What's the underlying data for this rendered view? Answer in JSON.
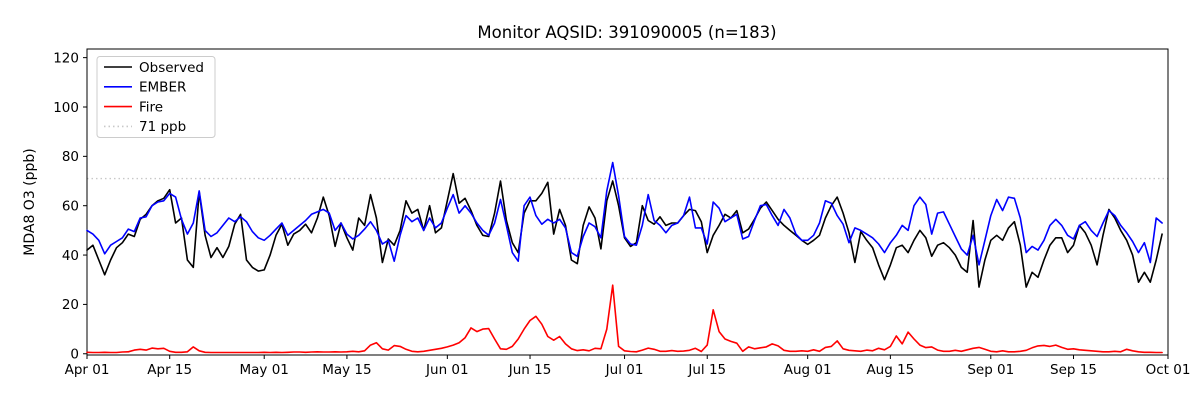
{
  "figure": {
    "title": "Monitor AQSID: 391090005 (n=183)",
    "background": "#ffffff",
    "frame_color": "#000000"
  },
  "chart_data": {
    "type": "line",
    "title": "Monitor AQSID: 391090005 (n=183)",
    "ylabel": "MDA8 O3 (ppb)",
    "xlabel": "",
    "n_points": 183,
    "x_unit": "day",
    "x_start": "Apr 01",
    "x_end": "Sep 30",
    "ylim": [
      -0.5,
      123.5
    ],
    "y_ticks": [
      0,
      20,
      40,
      60,
      80,
      100,
      120
    ],
    "x_ticks": [
      {
        "label": "Apr 01",
        "day": 0
      },
      {
        "label": "Apr 15",
        "day": 14
      },
      {
        "label": "May 01",
        "day": 30
      },
      {
        "label": "May 15",
        "day": 44
      },
      {
        "label": "Jun 01",
        "day": 61
      },
      {
        "label": "Jun 15",
        "day": 75
      },
      {
        "label": "Jul 01",
        "day": 91
      },
      {
        "label": "Jul 15",
        "day": 105
      },
      {
        "label": "Aug 01",
        "day": 122
      },
      {
        "label": "Aug 15",
        "day": 136
      },
      {
        "label": "Sep 01",
        "day": 153
      },
      {
        "label": "Sep 15",
        "day": 167
      },
      {
        "label": "Oct 01",
        "day": 183
      }
    ],
    "grid": false,
    "legend_position": "upper left",
    "reference_line": {
      "label": "71 ppb",
      "value": 71,
      "color": "#c8c8c8",
      "style": "dotted"
    },
    "legend_items": [
      {
        "label": "Observed",
        "color": "#000000",
        "style": "solid"
      },
      {
        "label": "EMBER",
        "color": "#0000ff",
        "style": "solid"
      },
      {
        "label": "Fire",
        "color": "#ff0000",
        "style": "solid"
      },
      {
        "label": "71 ppb",
        "color": "#c8c8c8",
        "style": "dotted"
      }
    ],
    "series": [
      {
        "name": "Observed",
        "color": "#000000",
        "values": [
          42,
          44,
          38,
          32,
          38,
          43,
          45,
          48.5,
          47.5,
          54.5,
          56.5,
          60,
          62,
          63,
          66.5,
          53,
          55,
          38,
          35,
          65.5,
          48,
          39,
          43,
          39,
          43.5,
          52.5,
          56.5,
          38,
          35,
          33.5,
          34,
          40,
          48,
          52.5,
          44,
          48.5,
          50,
          52.5,
          49,
          55,
          63.5,
          56,
          43.5,
          53,
          47,
          42,
          55,
          52,
          64.5,
          55,
          37,
          46.5,
          44,
          50,
          62,
          57,
          58.5,
          50,
          60,
          49,
          51,
          62,
          73,
          61,
          63,
          58,
          52,
          48,
          47.5,
          57,
          70,
          54,
          45,
          41,
          57,
          62,
          62,
          65,
          69.5,
          48.5,
          58.5,
          52,
          38,
          36.5,
          52,
          59.5,
          55,
          42.5,
          62,
          70,
          60,
          47,
          43.5,
          45,
          60,
          54,
          52.5,
          55.5,
          52,
          53,
          53,
          56,
          58.5,
          58,
          53.5,
          41,
          48,
          52,
          56.5,
          55,
          58,
          49,
          50.5,
          54.5,
          59,
          61.5,
          58,
          54.5,
          52,
          50,
          48,
          46,
          44.3,
          46,
          48,
          55,
          60,
          63.5,
          57,
          49,
          37,
          49.5,
          46,
          43,
          36,
          30,
          36,
          43,
          44,
          41,
          46,
          50,
          47,
          39.5,
          44,
          45,
          43,
          40,
          35,
          33,
          54,
          27,
          38,
          46,
          48,
          46,
          51,
          53.5,
          44,
          27,
          33,
          31,
          38,
          44,
          47,
          47,
          41,
          44,
          52,
          49,
          44,
          36,
          48,
          58.5,
          55,
          50,
          46,
          40,
          29,
          33,
          29,
          38,
          48.5
        ]
      },
      {
        "name": "EMBER",
        "color": "#0000ff",
        "values": [
          50,
          48.5,
          46,
          40.5,
          44,
          45.5,
          47,
          50.5,
          49.5,
          55,
          55.5,
          60,
          61.5,
          62,
          65,
          63.5,
          54.5,
          48.5,
          53,
          66,
          50,
          47.5,
          49,
          52,
          55,
          53.5,
          55.5,
          53.5,
          49.5,
          47,
          46,
          48,
          50.5,
          53,
          48,
          50,
          52,
          54,
          56.5,
          57.5,
          58.5,
          57,
          50,
          53,
          48.5,
          46.5,
          48,
          50.5,
          53.5,
          50,
          44.5,
          46,
          37.5,
          48,
          56,
          53.5,
          55,
          50,
          55,
          51,
          53,
          59,
          64.5,
          57,
          60,
          57,
          53,
          50,
          48,
          53,
          62.5,
          52,
          41,
          37.5,
          60,
          63.5,
          56,
          52.5,
          54.5,
          53,
          54.5,
          51,
          41,
          39.5,
          47.5,
          53,
          51.5,
          47,
          66,
          77.5,
          64,
          47.5,
          44.5,
          44,
          52,
          64.5,
          54,
          52,
          49,
          52,
          53,
          56,
          63.5,
          51,
          51,
          44.5,
          61.5,
          59,
          53.5,
          55,
          56.5,
          46.5,
          47.5,
          54,
          60,
          60.5,
          56,
          52,
          58.5,
          55,
          48.5,
          46,
          46,
          48,
          53,
          62,
          61,
          56,
          52.5,
          45,
          51,
          50,
          48.5,
          47,
          44.5,
          41,
          45,
          48,
          52,
          50,
          60,
          63.5,
          60.5,
          48.5,
          57,
          57.5,
          52.5,
          47.5,
          42.5,
          40,
          48,
          36,
          46,
          56,
          62.5,
          58,
          63.5,
          63,
          55,
          41,
          43.5,
          42,
          46,
          52,
          54.5,
          52,
          48,
          46.5,
          52,
          53.5,
          50,
          47.5,
          53,
          58,
          56,
          52,
          49,
          45.5,
          41,
          45,
          37,
          55,
          53
        ]
      },
      {
        "name": "Fire",
        "color": "#ff0000",
        "values": [
          0.6,
          0.5,
          0.5,
          0.6,
          0.5,
          0.5,
          0.7,
          0.8,
          1.5,
          1.8,
          1.5,
          2.3,
          2.0,
          2.2,
          1.0,
          0.6,
          0.6,
          0.8,
          2.8,
          1.2,
          0.6,
          0.5,
          0.5,
          0.5,
          0.5,
          0.5,
          0.5,
          0.5,
          0.5,
          0.5,
          0.6,
          0.5,
          0.6,
          0.5,
          0.6,
          0.7,
          0.7,
          0.6,
          0.7,
          0.8,
          0.7,
          0.7,
          0.8,
          0.7,
          0.8,
          1.0,
          0.8,
          1.2,
          3.5,
          4.5,
          2.0,
          1.5,
          3.3,
          3.0,
          1.8,
          1.0,
          0.8,
          1.0,
          1.4,
          1.8,
          2.2,
          2.8,
          3.5,
          4.5,
          6.5,
          10.5,
          9.0,
          10.0,
          10.2,
          6.0,
          2.0,
          1.8,
          3.0,
          6.0,
          10.0,
          13.5,
          15.2,
          12.0,
          7.0,
          5.5,
          7.0,
          4.0,
          2.0,
          1.3,
          1.6,
          1.2,
          2.2,
          2.0,
          10.0,
          27.8,
          3.0,
          1.2,
          0.9,
          0.8,
          1.5,
          2.3,
          1.8,
          1.0,
          1.0,
          1.3,
          1.0,
          1.1,
          1.4,
          2.2,
          0.9,
          3.5,
          17.8,
          9.0,
          6.0,
          5.0,
          4.3,
          1.0,
          2.8,
          2.0,
          2.4,
          2.8,
          4.0,
          3.2,
          1.4,
          1.0,
          1.0,
          1.2,
          1.0,
          1.6,
          1.0,
          2.6,
          3.0,
          5.2,
          2.0,
          1.4,
          1.2,
          1.0,
          1.5,
          1.2,
          2.2,
          1.6,
          3.0,
          7.2,
          4.0,
          8.8,
          6.0,
          3.5,
          2.5,
          2.8,
          1.5,
          1.0,
          1.0,
          1.4,
          1.0,
          1.6,
          2.2,
          2.6,
          1.8,
          1.0,
          0.8,
          1.2,
          0.8,
          0.8,
          1.0,
          1.4,
          2.4,
          3.2,
          3.4,
          3.0,
          3.5,
          2.6,
          1.8,
          2.0,
          1.6,
          1.4,
          1.2,
          1.0,
          0.8,
          0.8,
          1.0,
          0.8,
          1.8,
          1.2,
          0.8,
          0.6,
          0.6,
          0.5,
          0.5
        ]
      }
    ]
  }
}
